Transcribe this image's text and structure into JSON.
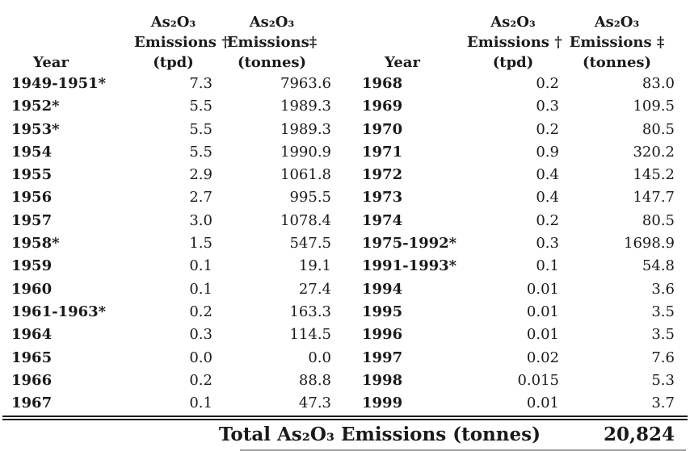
{
  "table": {
    "left": {
      "headers": {
        "year": "Year",
        "tpd": [
          "As₂O₃",
          "Emissions †",
          "(tpd)"
        ],
        "tonnes": [
          "As₂O₃",
          "Emissions‡",
          "(tonnes)"
        ]
      },
      "rows": [
        {
          "year": "1949-1951*",
          "tpd": "7.3",
          "tonnes": "7963.6"
        },
        {
          "year": "1952*",
          "tpd": "5.5",
          "tonnes": "1989.3"
        },
        {
          "year": "1953*",
          "tpd": "5.5",
          "tonnes": "1989.3"
        },
        {
          "year": "1954",
          "tpd": "5.5",
          "tonnes": "1990.9"
        },
        {
          "year": "1955",
          "tpd": "2.9",
          "tonnes": "1061.8"
        },
        {
          "year": "1956",
          "tpd": "2.7",
          "tonnes": "995.5"
        },
        {
          "year": "1957",
          "tpd": "3.0",
          "tonnes": "1078.4"
        },
        {
          "year": "1958*",
          "tpd": "1.5",
          "tonnes": "547.5"
        },
        {
          "year": "1959",
          "tpd": "0.1",
          "tonnes": "19.1"
        },
        {
          "year": "1960",
          "tpd": "0.1",
          "tonnes": "27.4"
        },
        {
          "year": "1961-1963*",
          "tpd": "0.2",
          "tonnes": "163.3"
        },
        {
          "year": "1964",
          "tpd": "0.3",
          "tonnes": "114.5"
        },
        {
          "year": "1965",
          "tpd": "0.0",
          "tonnes": "0.0"
        },
        {
          "year": "1966",
          "tpd": "0.2",
          "tonnes": "88.8"
        },
        {
          "year": "1967",
          "tpd": "0.1",
          "tonnes": "47.3"
        }
      ]
    },
    "right": {
      "headers": {
        "year": "Year",
        "tpd": [
          "As₂O₃",
          "Emissions †",
          "(tpd)"
        ],
        "tonnes": [
          "As₂O₃",
          "Emissions ‡",
          "(tonnes)"
        ]
      },
      "rows": [
        {
          "year": "1968",
          "tpd": "0.2",
          "tonnes": "83.0"
        },
        {
          "year": "1969",
          "tpd": "0.3",
          "tonnes": "109.5"
        },
        {
          "year": "1970",
          "tpd": "0.2",
          "tonnes": "80.5"
        },
        {
          "year": "1971",
          "tpd": "0.9",
          "tonnes": "320.2"
        },
        {
          "year": "1972",
          "tpd": "0.4",
          "tonnes": "145.2"
        },
        {
          "year": "1973",
          "tpd": "0.4",
          "tonnes": "147.7"
        },
        {
          "year": "1974",
          "tpd": "0.2",
          "tonnes": "80.5"
        },
        {
          "year": "1975-1992*",
          "tpd": "0.3",
          "tonnes": "1698.9"
        },
        {
          "year": "1991-1993*",
          "tpd": "0.1",
          "tonnes": "54.8"
        },
        {
          "year": "1994",
          "tpd": "0.01",
          "tonnes": "3.6"
        },
        {
          "year": "1995",
          "tpd": "0.01",
          "tonnes": "3.5"
        },
        {
          "year": "1996",
          "tpd": "0.01",
          "tonnes": "3.5"
        },
        {
          "year": "1997",
          "tpd": "0.02",
          "tonnes": "7.6"
        },
        {
          "year": "1998",
          "tpd": "0.015",
          "tonnes": "5.3"
        },
        {
          "year": "1999",
          "tpd": "0.01",
          "tonnes": "3.7"
        }
      ]
    },
    "footer": {
      "label": "Total As₂O₃ Emissions (tonnes)",
      "value": "20,824"
    }
  },
  "colors": {
    "text": "#1a1a1a",
    "rule": "#1a1a1a",
    "faint_rule": "#a0a0a0",
    "background": "#ffffff"
  }
}
